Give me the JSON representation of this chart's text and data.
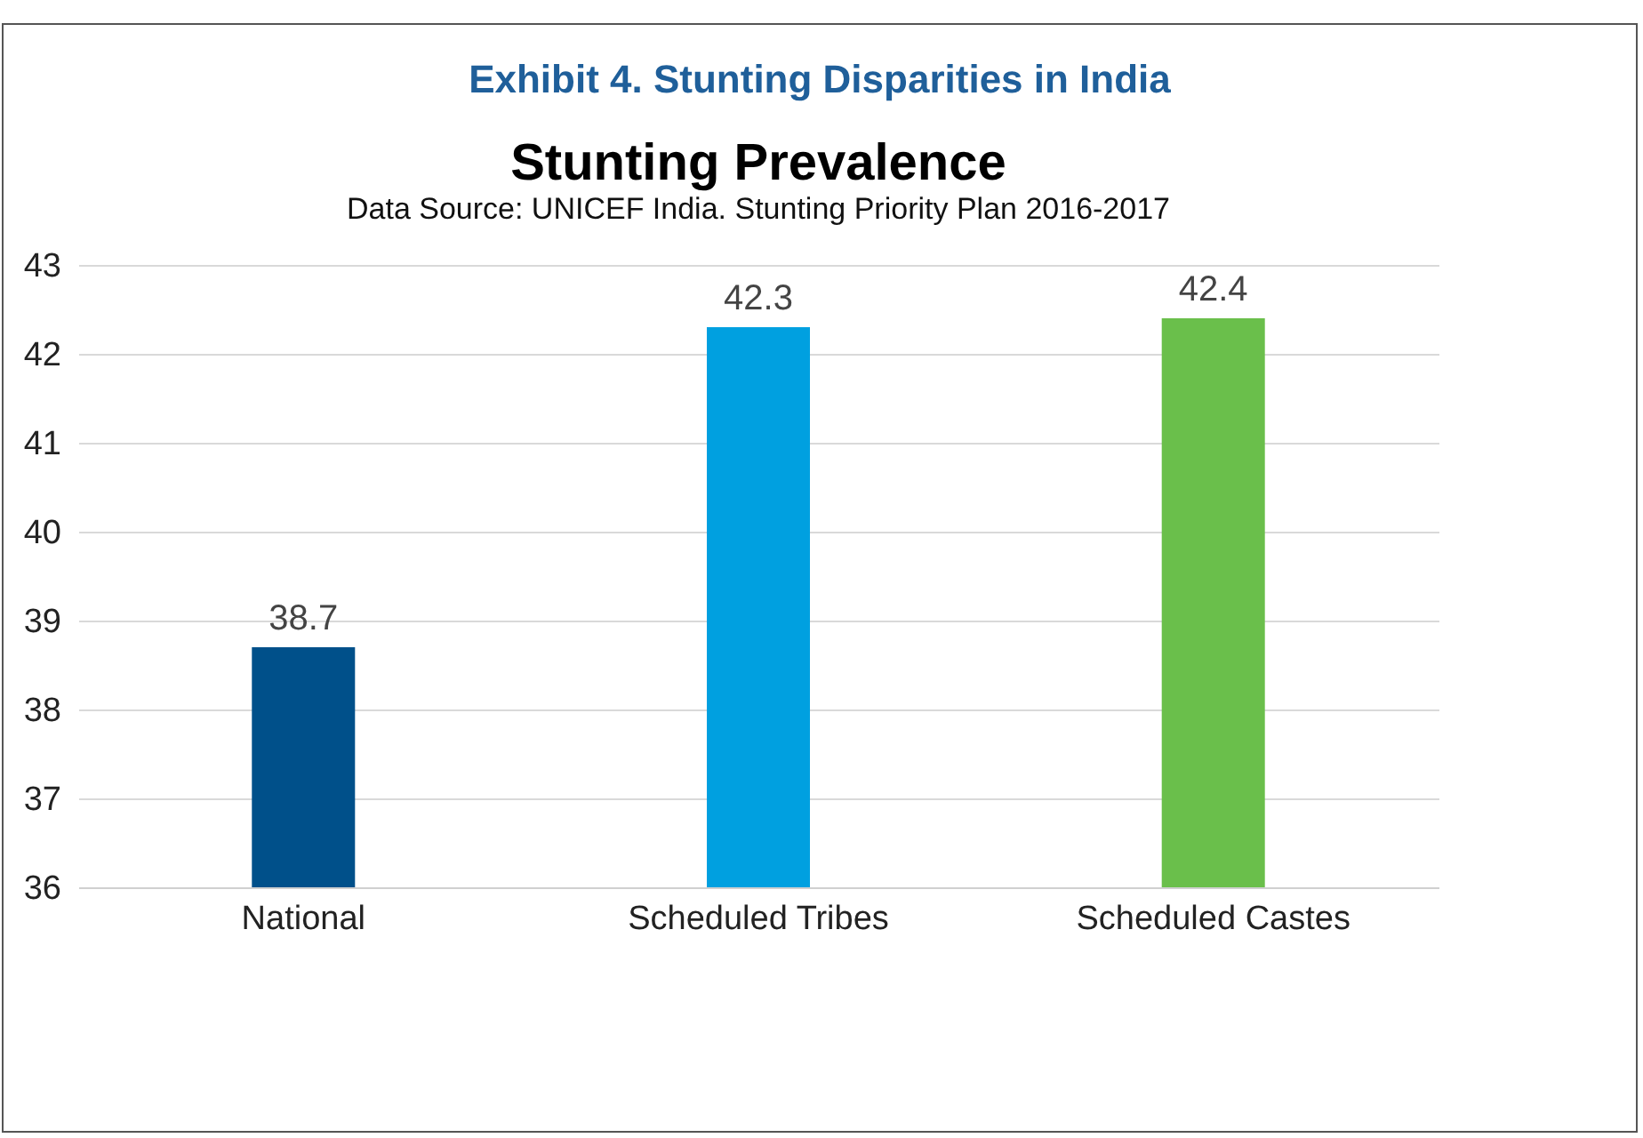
{
  "chart_data": {
    "type": "bar",
    "title": "Exhibit 4. Stunting Disparities in India",
    "subtitle": "Stunting Prevalence",
    "annotations": [
      "Data Source: UNICEF India. Stunting Priority Plan 2016-2017"
    ],
    "categories": [
      "National",
      "Scheduled Tribes",
      "Scheduled Castes"
    ],
    "values": [
      38.7,
      42.3,
      42.4
    ],
    "colors": [
      "#00508a",
      "#00a0e0",
      "#6abf4b"
    ],
    "ylim": [
      36,
      43
    ],
    "yticks": [
      36,
      37,
      38,
      39,
      40,
      41,
      42,
      43
    ],
    "grid": "y",
    "data_labels": true
  }
}
